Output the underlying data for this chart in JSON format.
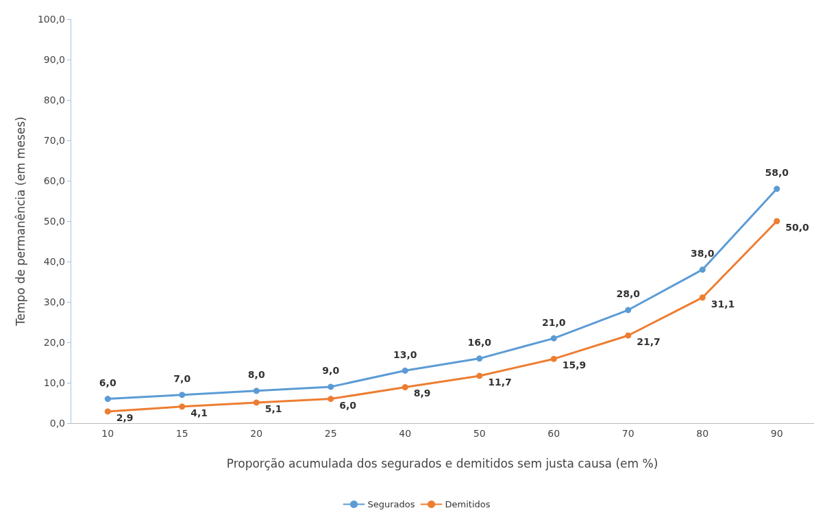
{
  "chart_data": {
    "type": "line",
    "xlabel": "Proporção acumulada dos segurados e demitidos sem justa causa (em %)",
    "ylabel": "Tempo de permanência (em meses)",
    "categories": [
      "10",
      "15",
      "20",
      "25",
      "40",
      "50",
      "60",
      "70",
      "80",
      "90"
    ],
    "series": [
      {
        "name": "Segurados",
        "color": "#5b9bd5",
        "values": [
          6.0,
          7.0,
          8.0,
          9.0,
          13.0,
          16.0,
          21.0,
          28.0,
          38.0,
          58.0
        ],
        "value_labels": [
          "6,0",
          "7,0",
          "8,0",
          "9,0",
          "13,0",
          "16,0",
          "21,0",
          "28,0",
          "38,0",
          "58,0"
        ]
      },
      {
        "name": "Demitidos",
        "color": "#ed7d31",
        "values": [
          2.9,
          4.1,
          5.1,
          6.0,
          8.9,
          11.7,
          15.9,
          21.7,
          31.1,
          50.0
        ],
        "value_labels": [
          "2,9",
          "4,1",
          "5,1",
          "6,0",
          "8,9",
          "11,7",
          "15,9",
          "21,7",
          "31,1",
          "50,0"
        ]
      }
    ],
    "ylim": [
      0,
      100
    ],
    "yticks": [
      {
        "value": 0,
        "label": "0,0"
      },
      {
        "value": 10,
        "label": "10,0"
      },
      {
        "value": 20,
        "label": "20,0"
      },
      {
        "value": 30,
        "label": "30,0"
      },
      {
        "value": 40,
        "label": "40,0"
      },
      {
        "value": 50,
        "label": "50,0"
      },
      {
        "value": 60,
        "label": "60,0"
      },
      {
        "value": 70,
        "label": "70,0"
      },
      {
        "value": 80,
        "label": "80,0"
      },
      {
        "value": 90,
        "label": "90,0"
      },
      {
        "value": 100,
        "label": "100,0"
      }
    ],
    "grid": false,
    "legend": "bottom",
    "marker": "circle",
    "line_style": "solid"
  }
}
